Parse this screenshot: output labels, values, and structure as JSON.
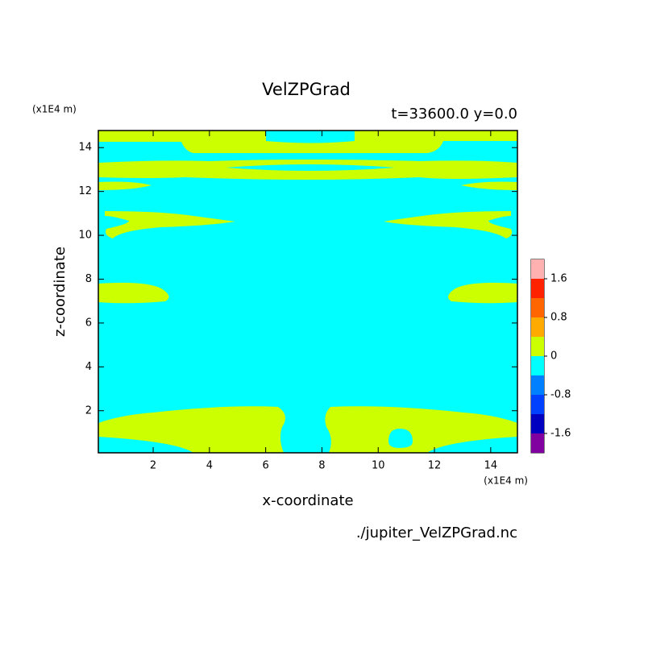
{
  "chart_data": {
    "type": "contour",
    "title": "VelZPGrad",
    "subtitle": "t=33600.0 y=0.0",
    "xlabel": "x-coordinate",
    "ylabel": "z-coordinate",
    "x_unit": "(x1E4 m)",
    "y_unit": "(x1E4 m)",
    "source": "./jupiter_VelZPGrad.nc",
    "xlim": [
      0.05,
      14.95
    ],
    "xticks": [
      2,
      4,
      6,
      8,
      10,
      12,
      14
    ],
    "ylim": [
      0.08,
      14.78
    ],
    "yticks": [
      2,
      4,
      6,
      8,
      10,
      12,
      14
    ],
    "levels": [
      -2.0,
      -1.6,
      -1.2,
      -0.8,
      -0.4,
      0,
      0.4,
      0.8,
      1.2,
      1.6,
      2.0
    ],
    "colors": [
      "#8000a0",
      "#0000c0",
      "#0040ff",
      "#0080ff",
      "#00ffff",
      "#ccff00",
      "#ffaa00",
      "#ff6600",
      "#ff2200",
      "#ffb0b0"
    ],
    "colorbar_ticks": [
      -1.6,
      -0.8,
      0,
      0.8,
      1.6
    ]
  }
}
